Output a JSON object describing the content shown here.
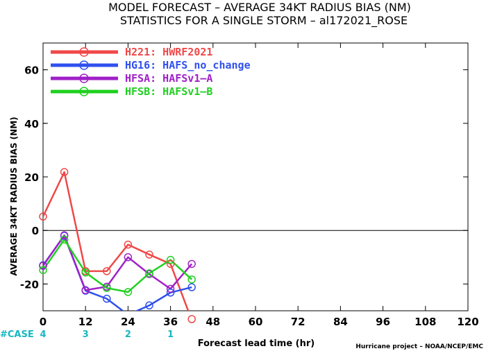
{
  "chart_data": {
    "type": "line",
    "title": "MODEL FORECAST – AVERAGE 34KT RADIUS BIAS (NM)",
    "subtitle": "STATISTICS FOR A SINGLE STORM – al172021_ROSE",
    "xlabel": "Forecast lead time (hr)",
    "ylabel": "AVERAGE 34KT RADIUS BIAS (NM)",
    "credit": "Hurricane project – NOAA/NCEP/EMC",
    "xlim": [
      0,
      120
    ],
    "ylim": [
      -30,
      70
    ],
    "xticks": [
      0,
      12,
      24,
      36,
      48,
      60,
      72,
      84,
      96,
      108,
      120
    ],
    "yticks": [
      -20,
      0,
      20,
      40,
      60
    ],
    "zero_line": true,
    "grid": false,
    "legend_position": "top-left",
    "cases_label": "#CASE",
    "cases": [
      {
        "x": 0,
        "n": "4"
      },
      {
        "x": 12,
        "n": "3"
      },
      {
        "x": 24,
        "n": "2"
      },
      {
        "x": 36,
        "n": "1"
      }
    ],
    "series": [
      {
        "name": "H221: HWRF2021",
        "color": "#f04848",
        "x": [
          0,
          6,
          12,
          18,
          24,
          30,
          36,
          42
        ],
        "y": [
          5.2,
          21.8,
          -15.2,
          -15.2,
          -5.3,
          -9.0,
          -12.5,
          -33.5
        ]
      },
      {
        "name": "HG16: HAFS_no_change",
        "color": "#2f50ee",
        "x": [
          0,
          6,
          12,
          18,
          24,
          30,
          36,
          42
        ],
        "y": [
          -13.0,
          -2.0,
          -22.5,
          -25.5,
          -31.5,
          -28.0,
          -23.2,
          -21.2
        ]
      },
      {
        "name": "HFSA: HAFSv1–A",
        "color": "#a020c8",
        "x": [
          0,
          6,
          12,
          18,
          24,
          30,
          36,
          42
        ],
        "y": [
          -13.2,
          -1.8,
          -22.3,
          -21.0,
          -10.0,
          -16.3,
          -21.8,
          -12.5
        ]
      },
      {
        "name": "HFSB: HAFSv1–B",
        "color": "#20d020",
        "x": [
          0,
          6,
          12,
          18,
          24,
          30,
          36,
          42
        ],
        "y": [
          -14.8,
          -3.4,
          -15.7,
          -21.5,
          -23.0,
          -16.0,
          -11.0,
          -18.3
        ]
      }
    ]
  }
}
